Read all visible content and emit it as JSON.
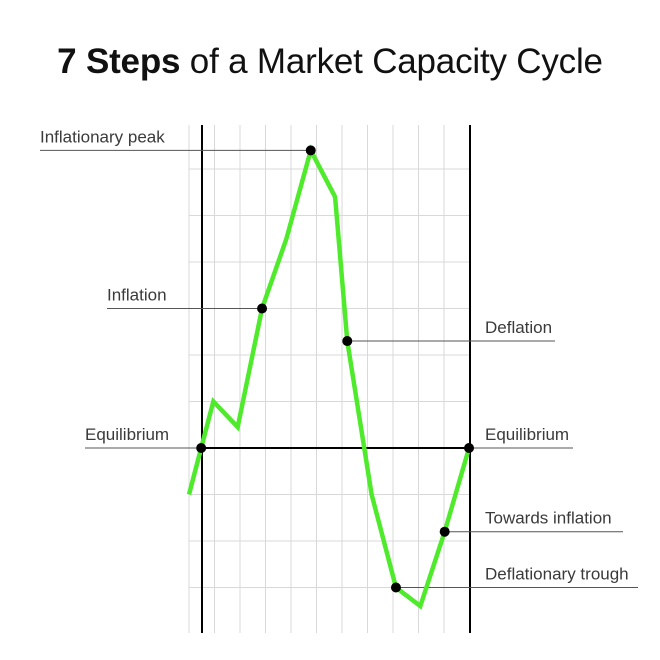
{
  "title": {
    "bold": "7 Steps",
    "rest": " of a Market Capacity Cycle"
  },
  "colors": {
    "line": "#4fea2c",
    "axis": "#000000",
    "grid": "#d9d9d9",
    "leader": "#555555",
    "text": "#3a3a3a"
  },
  "chart_data": {
    "type": "line",
    "grid": true,
    "curve": [
      [
        0,
        -1.0
      ],
      [
        0.5,
        0.0
      ],
      [
        1,
        1.0
      ],
      [
        2,
        0.45
      ],
      [
        3,
        3.0
      ],
      [
        4,
        4.5
      ],
      [
        5,
        6.4
      ],
      [
        6,
        5.4
      ],
      [
        6.5,
        2.3
      ],
      [
        7.5,
        -1.0
      ],
      [
        8.5,
        -3.0
      ],
      [
        9.5,
        -3.4
      ],
      [
        10.5,
        -1.8
      ],
      [
        11.5,
        0.0
      ]
    ],
    "points": [
      {
        "label": "Equilibrium",
        "x": 0.5,
        "y": 0.0,
        "side": "left"
      },
      {
        "label": "Inflation",
        "x": 3.0,
        "y": 3.0,
        "side": "left"
      },
      {
        "label": "Inflationary peak",
        "x": 5.0,
        "y": 6.4,
        "side": "left"
      },
      {
        "label": "Deflation",
        "x": 6.5,
        "y": 2.3,
        "side": "right"
      },
      {
        "label": "Deflationary trough",
        "x": 8.5,
        "y": -3.0,
        "side": "right"
      },
      {
        "label": "Towards inflation",
        "x": 10.5,
        "y": -1.8,
        "side": "right"
      },
      {
        "label": "Equilibrium",
        "x": 11.5,
        "y": 0.0,
        "side": "right"
      }
    ]
  }
}
